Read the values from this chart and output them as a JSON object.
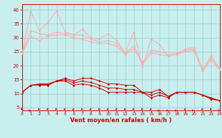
{
  "background_color": "#c8eeee",
  "grid_color": "#99cccc",
  "xlabel": "Vent moyen/en rafales ( km/h )",
  "xlabel_color": "#cc0000",
  "xlabel_fontsize": 6.0,
  "tick_color": "#cc0000",
  "ylim": [
    4,
    42
  ],
  "xlim": [
    0,
    23
  ],
  "yticks": [
    5,
    10,
    15,
    20,
    25,
    30,
    35,
    40
  ],
  "xticks": [
    0,
    1,
    2,
    3,
    4,
    5,
    6,
    7,
    8,
    9,
    10,
    11,
    12,
    13,
    14,
    15,
    16,
    17,
    18,
    19,
    20,
    21,
    22,
    23
  ],
  "lines_light": [
    [
      24.5,
      39.5,
      32.5,
      35.5,
      39.5,
      32.0,
      31.0,
      33.0,
      30.0,
      29.5,
      31.5,
      29.0,
      24.5,
      32.0,
      19.5,
      29.5,
      27.5,
      23.5,
      24.0,
      26.0,
      26.5,
      18.5,
      23.5,
      18.5
    ],
    [
      24.5,
      32.5,
      31.5,
      31.0,
      32.0,
      31.5,
      31.0,
      31.0,
      29.5,
      28.5,
      29.0,
      28.0,
      24.5,
      27.0,
      21.0,
      25.5,
      25.0,
      24.0,
      24.5,
      25.5,
      26.0,
      18.5,
      23.0,
      19.0
    ],
    [
      24.5,
      30.5,
      29.0,
      30.5,
      31.0,
      31.0,
      30.0,
      29.5,
      28.5,
      28.0,
      28.0,
      27.0,
      24.0,
      26.0,
      20.5,
      24.5,
      24.0,
      23.5,
      24.0,
      25.0,
      25.5,
      18.0,
      22.0,
      18.5
    ]
  ],
  "lines_dark": [
    [
      10.5,
      13.0,
      13.5,
      13.5,
      14.5,
      15.5,
      14.5,
      15.5,
      15.5,
      14.5,
      13.5,
      13.5,
      13.0,
      13.0,
      10.5,
      10.5,
      11.5,
      9.0,
      10.5,
      10.5,
      10.5,
      9.5,
      8.5,
      7.5
    ],
    [
      10.5,
      13.0,
      13.2,
      13.2,
      14.5,
      15.0,
      13.8,
      14.5,
      14.0,
      13.0,
      12.0,
      12.0,
      11.5,
      11.5,
      10.5,
      9.5,
      10.5,
      9.0,
      10.5,
      10.5,
      10.5,
      9.5,
      8.2,
      7.5
    ],
    [
      10.5,
      13.0,
      13.0,
      13.0,
      14.5,
      14.5,
      13.0,
      13.5,
      13.0,
      12.0,
      10.5,
      10.5,
      10.5,
      10.5,
      10.5,
      8.5,
      9.5,
      8.5,
      10.5,
      10.5,
      10.5,
      9.5,
      8.0,
      7.5
    ]
  ],
  "light_color": "#ffaaaa",
  "dark_color": "#cc0000",
  "arrow_color": "#cc0000",
  "arrow_angles": [
    270,
    300,
    270,
    270,
    270,
    275,
    270,
    270,
    275,
    270,
    270,
    275,
    270,
    270,
    275,
    270,
    300,
    310,
    300,
    275,
    300,
    270,
    290,
    315
  ]
}
